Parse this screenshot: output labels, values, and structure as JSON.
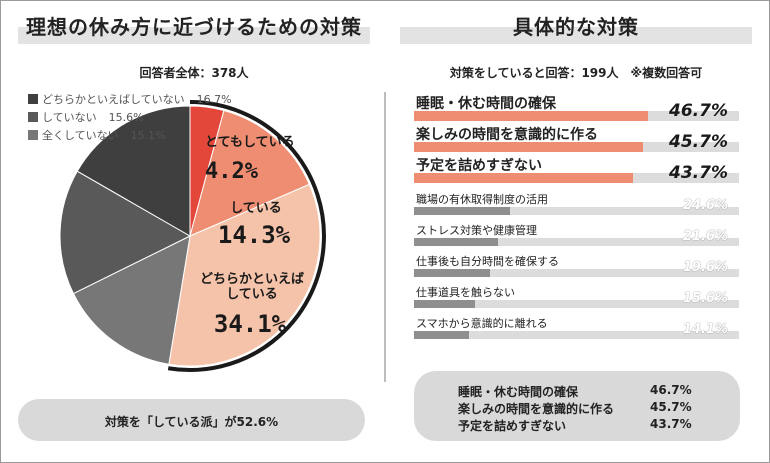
{
  "left": {
    "title": "理想の休み方に近づけるための対策",
    "respondents": "回答者全体：378人",
    "legend": [
      {
        "label": "どちらかといえばしていない",
        "pct": "16.7%",
        "color": "#3f3f3f"
      },
      {
        "label": "していない",
        "pct": "15.6%",
        "color": "#595959"
      },
      {
        "label": "全くしていない",
        "pct": "15.1%",
        "color": "#777777"
      }
    ],
    "summary": "対策を「している派」が52.6%"
  },
  "right": {
    "title": "具体的な対策",
    "respondents": "対策をしていると回答：199人　※複数回答可",
    "summary_rows": [
      {
        "label": "睡眠・休む時間の確保",
        "value": "46.7%"
      },
      {
        "label": "楽しみの時間を意識的に作る",
        "value": "45.7%"
      },
      {
        "label": "予定を詰めすぎない",
        "value": "43.7%"
      }
    ]
  },
  "chart_data": [
    {
      "type": "pie",
      "title": "理想の休み方に近づけるための対策",
      "slices": [
        {
          "label": "とてもしている",
          "value": 4.2,
          "display": "4.2%",
          "color": "#e2473a"
        },
        {
          "label": "している",
          "value": 14.3,
          "display": "14.3%",
          "color": "#ef8d72"
        },
        {
          "label": "どちらかといえば\nしている",
          "value": 34.1,
          "display": "34.1%",
          "color": "#f5c3a9"
        },
        {
          "label": "全くしていない",
          "value": 15.1,
          "display": "15.1%",
          "color": "#777777"
        },
        {
          "label": "していない",
          "value": 15.6,
          "display": "15.6%",
          "color": "#595959"
        },
        {
          "label": "どちらかといえばしていない",
          "value": 16.7,
          "display": "16.7%",
          "color": "#3f3f3f"
        }
      ]
    },
    {
      "type": "bar",
      "title": "具体的な対策",
      "categories": [
        "睡眠・休む時間の確保",
        "楽しみの時間を意識的に作る",
        "予定を詰めすぎない",
        "職場の有休取得制度の活用",
        "ストレス対策や健康管理",
        "仕事後も自分時間を確保する",
        "仕事道具を触らない",
        "スマホから意識的に離れる"
      ],
      "values": [
        46.7,
        45.7,
        43.7,
        24.6,
        21.6,
        19.6,
        15.6,
        14.1
      ],
      "labels": [
        "46.7%",
        "45.7%",
        "43.7%",
        "24.6%",
        "21.6%",
        "19.6%",
        "15.6%",
        "14.1%"
      ],
      "highlight_count": 3,
      "highlight_color": "#ef8d72",
      "base_color": "#8f8f8f",
      "track_color": "#dcdcdc",
      "max": 100
    }
  ]
}
